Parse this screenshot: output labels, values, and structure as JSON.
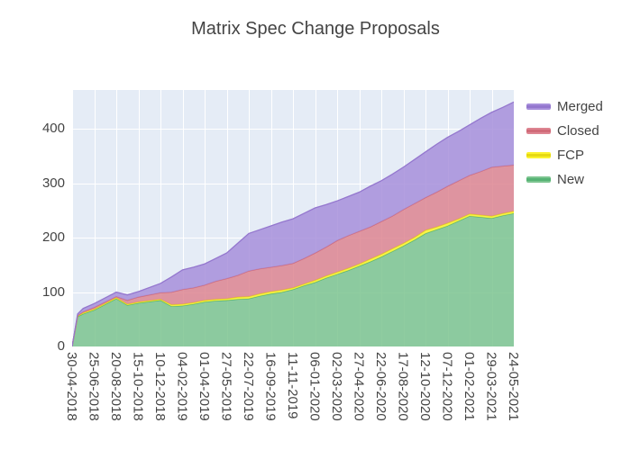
{
  "title": "Matrix Spec Change Proposals",
  "chart_data": {
    "type": "area",
    "stacked": true,
    "title": "Matrix Spec Change Proposals",
    "xlabel": "",
    "ylabel": "",
    "grid": true,
    "plot_bg": "#E5ECF6",
    "grid_color": "#FFFFFF",
    "font_color": "#444444",
    "fill_opacity": 0.85,
    "ylim": [
      0,
      472
    ],
    "yticks": [
      0,
      100,
      200,
      300,
      400
    ],
    "xticks": [
      "30-04-2018",
      "25-06-2018",
      "20-08-2018",
      "15-10-2018",
      "10-12-2018",
      "04-02-2019",
      "01-04-2019",
      "27-05-2019",
      "22-07-2019",
      "16-09-2019",
      "11-11-2019",
      "06-01-2020",
      "02-03-2020",
      "27-04-2020",
      "22-06-2020",
      "17-08-2020",
      "12-10-2020",
      "07-12-2020",
      "01-02-2021",
      "29-03-2021",
      "24-05-2021"
    ],
    "x": [
      "30-04-2018",
      "14-05-2018",
      "28-05-2018",
      "25-06-2018",
      "20-08-2018",
      "17-09-2018",
      "15-10-2018",
      "10-12-2018",
      "07-01-2019",
      "04-02-2019",
      "04-03-2019",
      "01-04-2019",
      "29-04-2019",
      "27-05-2019",
      "24-06-2019",
      "22-07-2019",
      "19-08-2019",
      "16-09-2019",
      "14-10-2019",
      "11-11-2019",
      "09-12-2019",
      "06-01-2020",
      "03-02-2020",
      "02-03-2020",
      "30-03-2020",
      "27-04-2020",
      "25-05-2020",
      "22-06-2020",
      "20-07-2020",
      "17-08-2020",
      "14-09-2020",
      "12-10-2020",
      "09-11-2020",
      "07-12-2020",
      "04-01-2021",
      "01-02-2021",
      "01-03-2021",
      "29-03-2021",
      "26-04-2021",
      "24-05-2021"
    ],
    "series": [
      {
        "name": "New",
        "fill": "#7cc48f",
        "line": "#56b374",
        "values": [
          0,
          55,
          60,
          67,
          88,
          76,
          80,
          85,
          74,
          75,
          78,
          82,
          84,
          85,
          87,
          88,
          93,
          97,
          100,
          105,
          112,
          118,
          126,
          133,
          140,
          148,
          156,
          165,
          175,
          185,
          196,
          208,
          215,
          222,
          231,
          240,
          238,
          236,
          241,
          245
        ]
      },
      {
        "name": "FCP",
        "fill": "#fcf32e",
        "line": "#e6d913",
        "values": [
          0,
          1,
          2,
          2,
          2,
          2,
          2,
          2,
          3,
          3,
          3,
          3,
          3,
          3,
          4,
          4,
          4,
          4,
          4,
          3,
          3,
          4,
          4,
          4,
          4,
          4,
          5,
          5,
          5,
          5,
          5,
          6,
          5,
          5,
          4,
          4,
          4,
          4,
          4,
          4
        ]
      },
      {
        "name": "Closed",
        "fill": "#dd8591",
        "line": "#d16b79",
        "values": [
          0,
          1,
          2,
          3,
          2,
          7,
          9,
          12,
          23,
          27,
          27,
          28,
          33,
          37,
          40,
          47,
          46,
          45,
          45,
          45,
          47,
          50,
          53,
          58,
          60,
          60,
          59,
          60,
          60,
          62,
          62,
          60,
          64,
          68,
          70,
          71,
          80,
          90,
          87,
          85
        ]
      },
      {
        "name": "Merged",
        "fill": "#a78fdb",
        "line": "#9477ce",
        "values": [
          0,
          3,
          6,
          7,
          8,
          10,
          10,
          17,
          28,
          36,
          38,
          39,
          42,
          47,
          59,
          69,
          72,
          76,
          80,
          82,
          83,
          83,
          78,
          73,
          72,
          72,
          75,
          75,
          77,
          78,
          81,
          84,
          88,
          90,
          91,
          93,
          98,
          101,
          108,
          116
        ]
      }
    ],
    "legend": {
      "position": "right",
      "order": [
        "Merged",
        "Closed",
        "FCP",
        "New"
      ]
    }
  }
}
